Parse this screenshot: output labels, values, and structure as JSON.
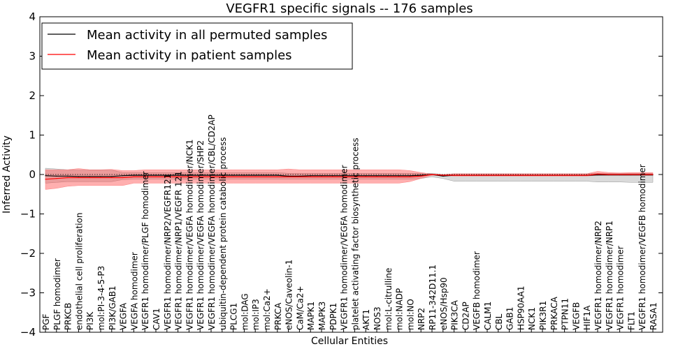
{
  "chart_data": {
    "type": "line",
    "title": "VEGFR1 specific signals -- 176 samples",
    "xlabel": "Cellular Entities",
    "ylabel": "Inferred Activity",
    "ylim": [
      -4,
      4
    ],
    "yticks": [
      -4,
      -3,
      -2,
      -1,
      0,
      1,
      2,
      3,
      4
    ],
    "ytick_labels": [
      "−4",
      "−3",
      "−2",
      "−1",
      "0",
      "1",
      "2",
      "3",
      "4"
    ],
    "grid": false,
    "legend_position": "top-left",
    "categories": [
      "PGF",
      "PLGF homodimer",
      "PRKCB",
      "endothelial cell proliferation",
      "PI3K",
      "mol:PI-3-4-5-P3",
      "PI3K/GAB1",
      "VEGFA",
      "VEGFA homodimer",
      "VEGFR1 homodimer/PLGF homodimer",
      "CAV1",
      "VEGFR1 homodimer/NRP2/VEGFR121",
      "VEGFR1 homodimer/NRP1/VEGFR 121",
      "VEGFR1 homodimer/VEGFA homodimer/NCK1",
      "VEGFR1 homodimer/VEGFA homodimer/SHP2",
      "VEGFR1 homodimer/VEGFA homodimer/CBL/CD2AP",
      "ubiquitin-dependent protein catabolic process",
      "PLCG1",
      "mol:DAG",
      "mol:IP3",
      "mol:Ca2+",
      "PRKCA",
      "eNOS/Caveolin-1",
      "CaM/Ca2+",
      "MAPK1",
      "MAPK3",
      "PDPK1",
      "VEGFR1 homodimer/VEGFA homodimer",
      "platelet activating factor biosynthetic process",
      "AKT1",
      "NOS3",
      "mol:L-citrulline",
      "mol:NADP",
      "mol:NO",
      "NRP2",
      "RP11-342D11.1",
      "eNOS/Hsp90",
      "PIK3CA",
      "CD2AP",
      "VEGFB homodimer",
      "CALM1",
      "CBL",
      "GAB1",
      "HSP90AA1",
      "NCK1",
      "PIK3R1",
      "PRKACA",
      "PTPN11",
      "VEGFB",
      "HIF1A",
      "VEGFR1 homodimer/NRP2",
      "VEGFR1 homodimer/NRP1",
      "VEGFR1 homodimer",
      "FLT1",
      "VEGFR1 homodimer/VEGFB homodimer",
      "RASA1"
    ],
    "series": [
      {
        "name": "Mean activity in all permuted samples",
        "color": "#000000",
        "values": [
          -0.03,
          -0.04,
          -0.04,
          -0.05,
          -0.05,
          -0.05,
          -0.05,
          -0.03,
          -0.02,
          -0.02,
          -0.02,
          -0.02,
          -0.02,
          -0.02,
          -0.02,
          -0.02,
          -0.02,
          -0.02,
          -0.02,
          -0.02,
          -0.02,
          -0.02,
          -0.04,
          -0.04,
          -0.03,
          -0.03,
          -0.03,
          -0.03,
          -0.03,
          -0.03,
          -0.03,
          -0.03,
          -0.03,
          -0.03,
          -0.02,
          0.0,
          -0.04,
          -0.02,
          -0.02,
          -0.02,
          -0.02,
          -0.02,
          -0.02,
          -0.02,
          -0.02,
          -0.02,
          -0.02,
          -0.02,
          -0.02,
          -0.02,
          -0.01,
          -0.01,
          -0.01,
          -0.01,
          -0.01,
          -0.01
        ],
        "band_upper": [
          0.16,
          0.14,
          0.12,
          0.11,
          0.11,
          0.11,
          0.11,
          0.05,
          0.05,
          0.05,
          0.05,
          0.05,
          0.05,
          0.05,
          0.05,
          0.05,
          0.05,
          0.05,
          0.05,
          0.05,
          0.05,
          0.05,
          0.03,
          0.03,
          0.03,
          0.03,
          0.03,
          0.03,
          0.03,
          0.03,
          0.03,
          0.03,
          0.03,
          0.03,
          0.03,
          0.03,
          0.0,
          0.02,
          0.02,
          0.02,
          0.02,
          0.02,
          0.02,
          0.02,
          0.02,
          0.02,
          0.02,
          0.02,
          0.02,
          0.02,
          0.03,
          0.03,
          0.03,
          0.03,
          0.03,
          0.03
        ],
        "band_lower": [
          -0.22,
          -0.2,
          -0.18,
          -0.18,
          -0.18,
          -0.18,
          -0.18,
          -0.13,
          -0.12,
          -0.12,
          -0.12,
          -0.12,
          -0.12,
          -0.12,
          -0.12,
          -0.12,
          -0.12,
          -0.12,
          -0.12,
          -0.12,
          -0.12,
          -0.12,
          -0.12,
          -0.12,
          -0.12,
          -0.12,
          -0.12,
          -0.12,
          -0.12,
          -0.12,
          -0.12,
          -0.12,
          -0.12,
          -0.12,
          -0.1,
          -0.06,
          -0.1,
          -0.17,
          -0.17,
          -0.17,
          -0.17,
          -0.17,
          -0.17,
          -0.17,
          -0.17,
          -0.17,
          -0.17,
          -0.17,
          -0.17,
          -0.17,
          -0.19,
          -0.19,
          -0.19,
          -0.2,
          -0.2,
          -0.2
        ]
      },
      {
        "name": "Mean activity in patient samples",
        "color": "#ff0000",
        "values": [
          -0.12,
          -0.1,
          -0.08,
          -0.08,
          -0.08,
          -0.08,
          -0.08,
          -0.08,
          -0.06,
          -0.06,
          -0.06,
          -0.06,
          -0.06,
          -0.06,
          -0.06,
          -0.06,
          -0.06,
          -0.06,
          -0.06,
          -0.06,
          -0.06,
          -0.06,
          -0.06,
          -0.06,
          -0.06,
          -0.06,
          -0.06,
          -0.06,
          -0.06,
          -0.06,
          -0.06,
          -0.06,
          -0.06,
          -0.06,
          -0.04,
          0.0,
          -0.02,
          -0.02,
          -0.02,
          -0.02,
          -0.02,
          -0.02,
          -0.02,
          -0.02,
          -0.02,
          -0.02,
          -0.02,
          -0.02,
          -0.02,
          -0.02,
          0.01,
          0.0,
          0.0,
          0.0,
          0.0,
          0.0
        ],
        "band_upper": [
          0.12,
          0.12,
          0.12,
          0.15,
          0.12,
          0.12,
          0.13,
          0.1,
          0.1,
          0.12,
          0.12,
          0.12,
          0.12,
          0.12,
          0.12,
          0.12,
          0.12,
          0.12,
          0.12,
          0.12,
          0.12,
          0.12,
          0.14,
          0.12,
          0.12,
          0.12,
          0.12,
          0.12,
          0.12,
          0.12,
          0.12,
          0.12,
          0.12,
          0.1,
          0.05,
          0.01,
          0.0,
          0.02,
          0.02,
          0.02,
          0.02,
          0.02,
          0.02,
          0.02,
          0.02,
          0.02,
          0.02,
          0.02,
          0.02,
          0.02,
          0.08,
          0.05,
          0.04,
          0.05,
          0.05,
          0.05
        ],
        "band_lower": [
          -0.38,
          -0.35,
          -0.3,
          -0.28,
          -0.28,
          -0.28,
          -0.28,
          -0.28,
          -0.22,
          -0.22,
          -0.22,
          -0.22,
          -0.22,
          -0.22,
          -0.22,
          -0.22,
          -0.22,
          -0.22,
          -0.22,
          -0.22,
          -0.22,
          -0.22,
          -0.22,
          -0.22,
          -0.22,
          -0.22,
          -0.22,
          -0.22,
          -0.22,
          -0.22,
          -0.22,
          -0.22,
          -0.22,
          -0.18,
          -0.1,
          -0.02,
          -0.02,
          -0.04,
          -0.04,
          -0.04,
          -0.04,
          -0.04,
          -0.04,
          -0.04,
          -0.04,
          -0.04,
          -0.04,
          -0.04,
          -0.04,
          -0.04,
          -0.02,
          -0.02,
          -0.02,
          -0.02,
          -0.02,
          -0.02
        ]
      }
    ],
    "band_colors": [
      "#bbbbbb",
      "#ff4d4d"
    ]
  }
}
